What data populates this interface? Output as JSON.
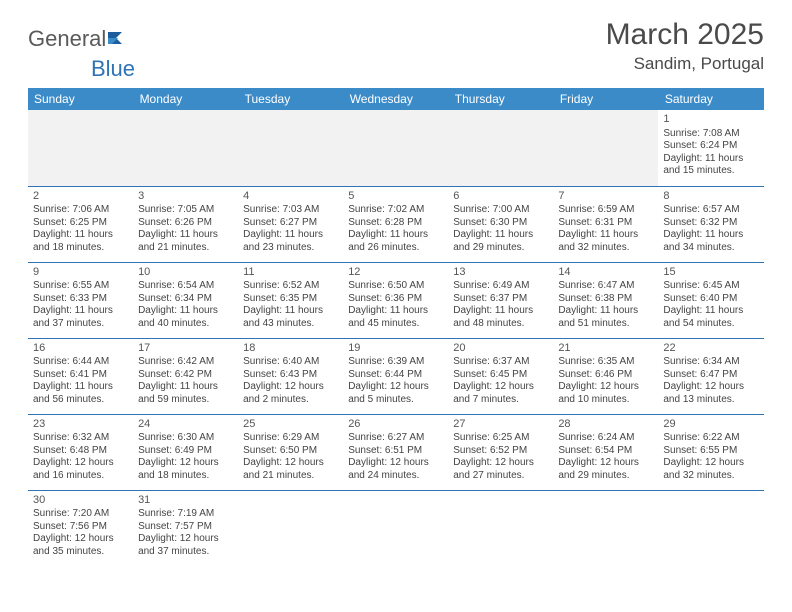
{
  "logo": {
    "general": "General",
    "blue": "Blue"
  },
  "title": "March 2025",
  "location": "Sandim, Portugal",
  "colors": {
    "header_bg": "#3b8bc9",
    "header_text": "#ffffff",
    "cell_border": "#2f74b5",
    "blank_bg": "#f2f2f2",
    "text": "#444444"
  },
  "weekdays": [
    "Sunday",
    "Monday",
    "Tuesday",
    "Wednesday",
    "Thursday",
    "Friday",
    "Saturday"
  ],
  "weeks": [
    [
      null,
      null,
      null,
      null,
      null,
      null,
      {
        "n": "1",
        "sr": "Sunrise: 7:08 AM",
        "ss": "Sunset: 6:24 PM",
        "dl": "Daylight: 11 hours and 15 minutes."
      }
    ],
    [
      {
        "n": "2",
        "sr": "Sunrise: 7:06 AM",
        "ss": "Sunset: 6:25 PM",
        "dl": "Daylight: 11 hours and 18 minutes."
      },
      {
        "n": "3",
        "sr": "Sunrise: 7:05 AM",
        "ss": "Sunset: 6:26 PM",
        "dl": "Daylight: 11 hours and 21 minutes."
      },
      {
        "n": "4",
        "sr": "Sunrise: 7:03 AM",
        "ss": "Sunset: 6:27 PM",
        "dl": "Daylight: 11 hours and 23 minutes."
      },
      {
        "n": "5",
        "sr": "Sunrise: 7:02 AM",
        "ss": "Sunset: 6:28 PM",
        "dl": "Daylight: 11 hours and 26 minutes."
      },
      {
        "n": "6",
        "sr": "Sunrise: 7:00 AM",
        "ss": "Sunset: 6:30 PM",
        "dl": "Daylight: 11 hours and 29 minutes."
      },
      {
        "n": "7",
        "sr": "Sunrise: 6:59 AM",
        "ss": "Sunset: 6:31 PM",
        "dl": "Daylight: 11 hours and 32 minutes."
      },
      {
        "n": "8",
        "sr": "Sunrise: 6:57 AM",
        "ss": "Sunset: 6:32 PM",
        "dl": "Daylight: 11 hours and 34 minutes."
      }
    ],
    [
      {
        "n": "9",
        "sr": "Sunrise: 6:55 AM",
        "ss": "Sunset: 6:33 PM",
        "dl": "Daylight: 11 hours and 37 minutes."
      },
      {
        "n": "10",
        "sr": "Sunrise: 6:54 AM",
        "ss": "Sunset: 6:34 PM",
        "dl": "Daylight: 11 hours and 40 minutes."
      },
      {
        "n": "11",
        "sr": "Sunrise: 6:52 AM",
        "ss": "Sunset: 6:35 PM",
        "dl": "Daylight: 11 hours and 43 minutes."
      },
      {
        "n": "12",
        "sr": "Sunrise: 6:50 AM",
        "ss": "Sunset: 6:36 PM",
        "dl": "Daylight: 11 hours and 45 minutes."
      },
      {
        "n": "13",
        "sr": "Sunrise: 6:49 AM",
        "ss": "Sunset: 6:37 PM",
        "dl": "Daylight: 11 hours and 48 minutes."
      },
      {
        "n": "14",
        "sr": "Sunrise: 6:47 AM",
        "ss": "Sunset: 6:38 PM",
        "dl": "Daylight: 11 hours and 51 minutes."
      },
      {
        "n": "15",
        "sr": "Sunrise: 6:45 AM",
        "ss": "Sunset: 6:40 PM",
        "dl": "Daylight: 11 hours and 54 minutes."
      }
    ],
    [
      {
        "n": "16",
        "sr": "Sunrise: 6:44 AM",
        "ss": "Sunset: 6:41 PM",
        "dl": "Daylight: 11 hours and 56 minutes."
      },
      {
        "n": "17",
        "sr": "Sunrise: 6:42 AM",
        "ss": "Sunset: 6:42 PM",
        "dl": "Daylight: 11 hours and 59 minutes."
      },
      {
        "n": "18",
        "sr": "Sunrise: 6:40 AM",
        "ss": "Sunset: 6:43 PM",
        "dl": "Daylight: 12 hours and 2 minutes."
      },
      {
        "n": "19",
        "sr": "Sunrise: 6:39 AM",
        "ss": "Sunset: 6:44 PM",
        "dl": "Daylight: 12 hours and 5 minutes."
      },
      {
        "n": "20",
        "sr": "Sunrise: 6:37 AM",
        "ss": "Sunset: 6:45 PM",
        "dl": "Daylight: 12 hours and 7 minutes."
      },
      {
        "n": "21",
        "sr": "Sunrise: 6:35 AM",
        "ss": "Sunset: 6:46 PM",
        "dl": "Daylight: 12 hours and 10 minutes."
      },
      {
        "n": "22",
        "sr": "Sunrise: 6:34 AM",
        "ss": "Sunset: 6:47 PM",
        "dl": "Daylight: 12 hours and 13 minutes."
      }
    ],
    [
      {
        "n": "23",
        "sr": "Sunrise: 6:32 AM",
        "ss": "Sunset: 6:48 PM",
        "dl": "Daylight: 12 hours and 16 minutes."
      },
      {
        "n": "24",
        "sr": "Sunrise: 6:30 AM",
        "ss": "Sunset: 6:49 PM",
        "dl": "Daylight: 12 hours and 18 minutes."
      },
      {
        "n": "25",
        "sr": "Sunrise: 6:29 AM",
        "ss": "Sunset: 6:50 PM",
        "dl": "Daylight: 12 hours and 21 minutes."
      },
      {
        "n": "26",
        "sr": "Sunrise: 6:27 AM",
        "ss": "Sunset: 6:51 PM",
        "dl": "Daylight: 12 hours and 24 minutes."
      },
      {
        "n": "27",
        "sr": "Sunrise: 6:25 AM",
        "ss": "Sunset: 6:52 PM",
        "dl": "Daylight: 12 hours and 27 minutes."
      },
      {
        "n": "28",
        "sr": "Sunrise: 6:24 AM",
        "ss": "Sunset: 6:54 PM",
        "dl": "Daylight: 12 hours and 29 minutes."
      },
      {
        "n": "29",
        "sr": "Sunrise: 6:22 AM",
        "ss": "Sunset: 6:55 PM",
        "dl": "Daylight: 12 hours and 32 minutes."
      }
    ],
    [
      {
        "n": "30",
        "sr": "Sunrise: 7:20 AM",
        "ss": "Sunset: 7:56 PM",
        "dl": "Daylight: 12 hours and 35 minutes."
      },
      {
        "n": "31",
        "sr": "Sunrise: 7:19 AM",
        "ss": "Sunset: 7:57 PM",
        "dl": "Daylight: 12 hours and 37 minutes."
      },
      null,
      null,
      null,
      null,
      null
    ]
  ]
}
